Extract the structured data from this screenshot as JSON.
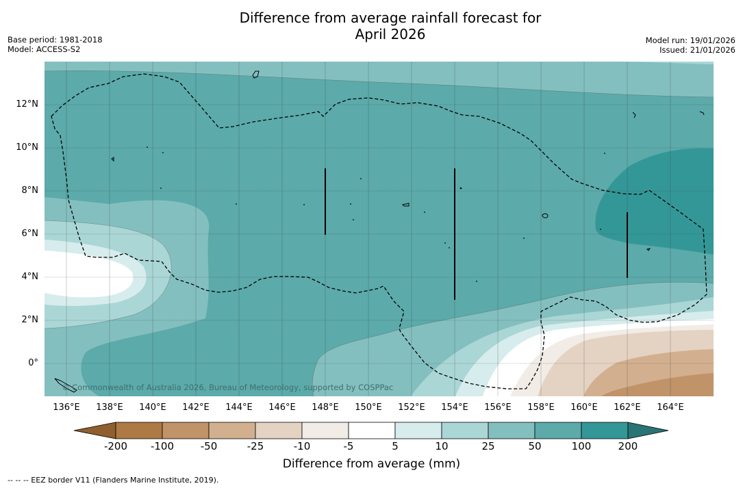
{
  "title": {
    "line1": "Difference from average rainfall forecast for",
    "line2": "April 2026"
  },
  "meta_left": {
    "base_period": "Base period: 1981-2018",
    "model": "Model: ACCESS-S2"
  },
  "meta_right": {
    "model_run": "Model run: 19/01/2026",
    "issued": "Issued: 21/01/2026"
  },
  "map": {
    "lat_labels": [
      "12°N",
      "10°N",
      "8°N",
      "6°N",
      "4°N",
      "2°N",
      "0°"
    ],
    "lon_labels": [
      "136°E",
      "138°E",
      "140°E",
      "142°E",
      "144°E",
      "146°E",
      "148°E",
      "150°E",
      "152°E",
      "154°E",
      "156°E",
      "158°E",
      "160°E",
      "162°E",
      "164°E"
    ],
    "copyright": "© Commonwealth of Australia 2026, Bureau of Meteorology, supported by COSPPac"
  },
  "colorbar": {
    "labels": [
      "-200",
      "-100",
      "-50",
      "-25",
      "-10",
      "-5",
      "5",
      "10",
      "25",
      "50",
      "100",
      "200"
    ],
    "colors": {
      "lt_-200": "#8f5f2f",
      "-200_-100": "#ad7944",
      "-100_-50": "#c09369",
      "-50_-25": "#d2b08f",
      "-25_-10": "#e4d3c3",
      "-10_-5": "#f2ece7",
      "-5_5": "#ffffff",
      "5_10": "#d7ecec",
      "10_25": "#abd6d6",
      "25_50": "#84bfbf",
      "50_100": "#5caaaa",
      "100_200": "#349797",
      "gt_200": "#297474"
    },
    "title": "Difference from average (mm)"
  },
  "footnote": "-- -- -- EEZ border V11 (Flanders Marine Institute, 2019)."
}
